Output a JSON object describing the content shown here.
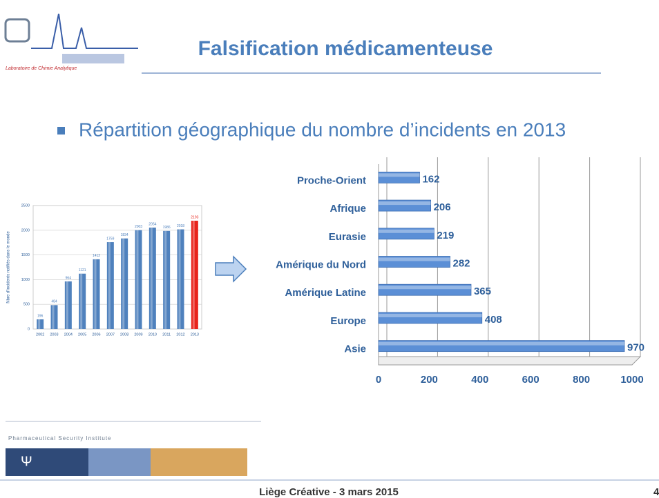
{
  "header": {
    "title": "Falsification médicamenteuse",
    "lab": "Laboratoire de Chimie Analytique"
  },
  "bullet": "Répartition géographique du nombre d’incidents en 2013",
  "chart_data": [
    {
      "type": "bar",
      "y_label": "Nbre d'incidents notifiés dans le monde",
      "categories": [
        "2002",
        "2003",
        "2004",
        "2005",
        "2006",
        "2007",
        "2008",
        "2009",
        "2010",
        "2011",
        "2012",
        "2013"
      ],
      "values": [
        196,
        484,
        964,
        1121,
        1412,
        1759,
        1834,
        2003,
        2054,
        1986,
        2018,
        2193
      ],
      "colors": [
        "#4f81bd",
        "#4f81bd",
        "#4f81bd",
        "#4f81bd",
        "#4f81bd",
        "#4f81bd",
        "#4f81bd",
        "#4f81bd",
        "#4f81bd",
        "#4f81bd",
        "#4f81bd",
        "#e8231b"
      ],
      "ylim": [
        0,
        2500
      ],
      "yticks": [
        0,
        500,
        1000,
        1500,
        2000,
        2500
      ],
      "grid": true
    },
    {
      "type": "hbar",
      "categories": [
        "Proche-Orient",
        "Afrique",
        "Eurasie",
        "Amérique du Nord",
        "Amérique Latine",
        "Europe",
        "Asie"
      ],
      "values": [
        162,
        206,
        219,
        282,
        365,
        408,
        970
      ],
      "color": "#5b8fd6",
      "xlim": [
        0,
        1000
      ],
      "xticks": [
        0,
        200,
        400,
        600,
        800,
        1000
      ],
      "grid": true
    }
  ],
  "footer": {
    "institute": "Pharmaceutical Security Institute",
    "text": "Liège Créative - 3 mars 2015",
    "page": "4"
  }
}
